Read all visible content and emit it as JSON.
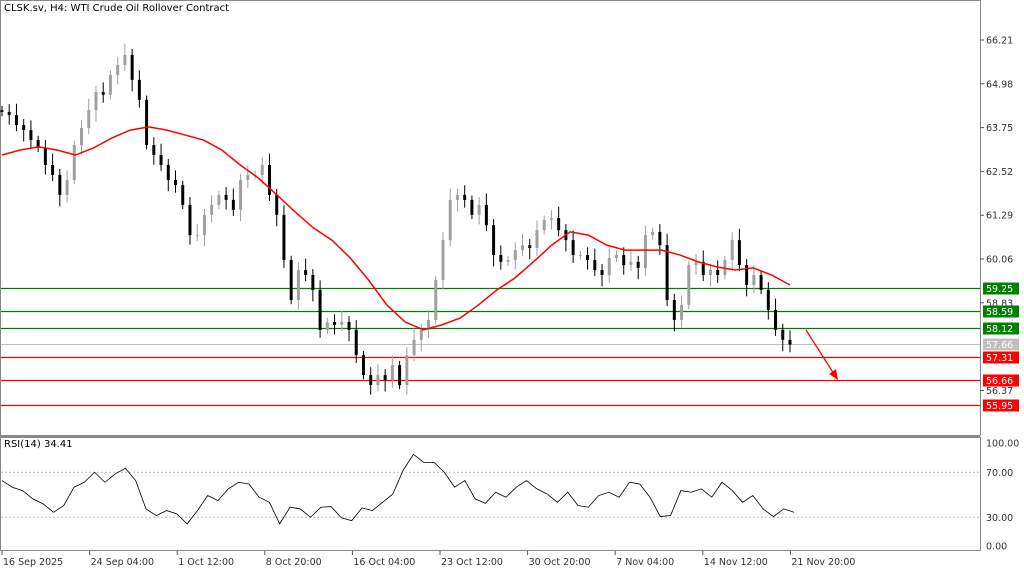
{
  "header": {
    "title": "CLSK.sv, H4:  WTI Crude Oil Rollover Contract"
  },
  "rsi": {
    "label": "RSI(14) 34.41",
    "levels": [
      70,
      30
    ],
    "ticks": [
      "100.00",
      "70.00",
      "30.00",
      "0.00"
    ],
    "color": "#000000"
  },
  "colors": {
    "support": "#008000",
    "resistance": "#ff0000",
    "current": "#c0c0c0",
    "ma": "#ff0000",
    "up_candle": "#a0a0a0",
    "down_candle": "#000000"
  },
  "chart_data": {
    "type": "candlestick",
    "symbol": "CLSK.sv",
    "timeframe": "H4",
    "price_ticks": [
      66.21,
      64.98,
      63.75,
      62.52,
      61.29,
      60.06,
      58.83,
      56.37
    ],
    "ylim": [
      55.5,
      67.3
    ],
    "time_labels": [
      "16 Sep 2025",
      "24 Sep 04:00",
      "1 Oct 12:00",
      "8 Oct 20:00",
      "16 Oct 04:00",
      "23 Oct 12:00",
      "30 Oct 20:00",
      "7 Nov 04:00",
      "14 Nov 12:00",
      "21 Nov 20:00"
    ],
    "current_price": 57.66,
    "levels": [
      {
        "price": 59.25,
        "label": "59.25",
        "type": "support"
      },
      {
        "price": 58.59,
        "label": "58.59",
        "type": "support"
      },
      {
        "price": 58.12,
        "label": "58.12",
        "type": "support"
      },
      {
        "price": 57.66,
        "label": "57.66",
        "type": "current"
      },
      {
        "price": 57.31,
        "label": "57.31",
        "type": "resistance"
      },
      {
        "price": 56.66,
        "label": "56.66",
        "type": "resistance"
      },
      {
        "price": 55.95,
        "label": "55.95",
        "type": "resistance"
      }
    ],
    "closes": [
      64.19,
      64.1,
      63.82,
      63.68,
      63.4,
      63.18,
      62.7,
      62.42,
      61.86,
      62.28,
      63.26,
      63.74,
      64.24,
      64.75,
      64.67,
      65.23,
      65.51,
      65.79,
      65.09,
      64.53,
      63.26,
      62.98,
      62.7,
      62.28,
      62.14,
      61.58,
      60.73,
      60.73,
      61.3,
      61.58,
      61.86,
      61.72,
      61.44,
      62.28,
      62.42,
      62.42,
      62.7,
      61.86,
      61.3,
      60.03,
      58.91,
      59.75,
      59.61,
      59.19,
      58.07,
      58.29,
      58.21,
      58.29,
      58.07,
      57.36,
      56.8,
      56.52,
      56.8,
      56.66,
      57.08,
      56.52,
      57.36,
      57.79,
      58.07,
      58.35,
      59.47,
      60.59,
      61.72,
      61.86,
      61.72,
      61.3,
      61.58,
      61.01,
      60.17,
      59.98,
      60.03,
      60.31,
      60.45,
      60.37,
      60.87,
      61.16,
      61.21,
      60.87,
      60.59,
      60.17,
      60.17,
      60.03,
      59.75,
      59.61,
      60.09,
      60.17,
      59.89,
      59.98,
      59.81,
      60.73,
      60.82,
      60.45,
      58.91,
      58.35,
      58.77,
      59.89,
      59.98,
      59.61,
      59.75,
      59.61,
      60.03,
      60.59,
      59.89,
      59.33,
      59.61,
      59.19,
      58.63,
      58.07,
      57.79,
      57.66
    ],
    "moving_average": [
      62.98,
      63.12,
      63.21,
      63.12,
      62.98,
      63.18,
      63.46,
      63.68,
      63.77,
      63.68,
      63.54,
      63.4,
      63.12,
      62.7,
      62.33,
      61.86,
      61.38,
      60.93,
      60.59,
      60.09,
      59.47,
      58.77,
      58.29,
      58.07,
      58.21,
      58.4,
      58.77,
      59.19,
      59.53,
      59.98,
      60.45,
      60.82,
      60.73,
      60.45,
      60.31,
      60.31,
      60.31,
      60.17,
      59.98,
      59.84,
      59.75,
      59.81,
      59.61,
      59.33
    ],
    "rsi_values": [
      62.6,
      56.7,
      53.7,
      46.3,
      41.9,
      34.4,
      40.4,
      56.7,
      61.1,
      70.0,
      61.1,
      68.5,
      73.5,
      62.6,
      37.4,
      31.5,
      35.9,
      33.0,
      24.1,
      35.9,
      49.3,
      44.8,
      55.2,
      61.1,
      59.6,
      47.8,
      43.3,
      24.1,
      38.9,
      37.4,
      30.0,
      38.9,
      39.5,
      29.4,
      27.0,
      38.3,
      35.9,
      43.3,
      50.7,
      71.8,
      85.9,
      78.8,
      78.8,
      70.0,
      56.7,
      62.6,
      46.3,
      42.4,
      52.2,
      47.8,
      56.7,
      62.6,
      55.2,
      50.7,
      43.3,
      52.2,
      40.4,
      38.9,
      49.3,
      52.2,
      47.8,
      61.1,
      59.6,
      47.8,
      30.6,
      31.5,
      53.7,
      52.2,
      55.2,
      47.8,
      61.1,
      53.7,
      43.3,
      49.3,
      37.4,
      30.6,
      37.4,
      34.41
    ],
    "annotation": {
      "type": "arrow",
      "direction": "down",
      "color": "#ff0000"
    }
  }
}
